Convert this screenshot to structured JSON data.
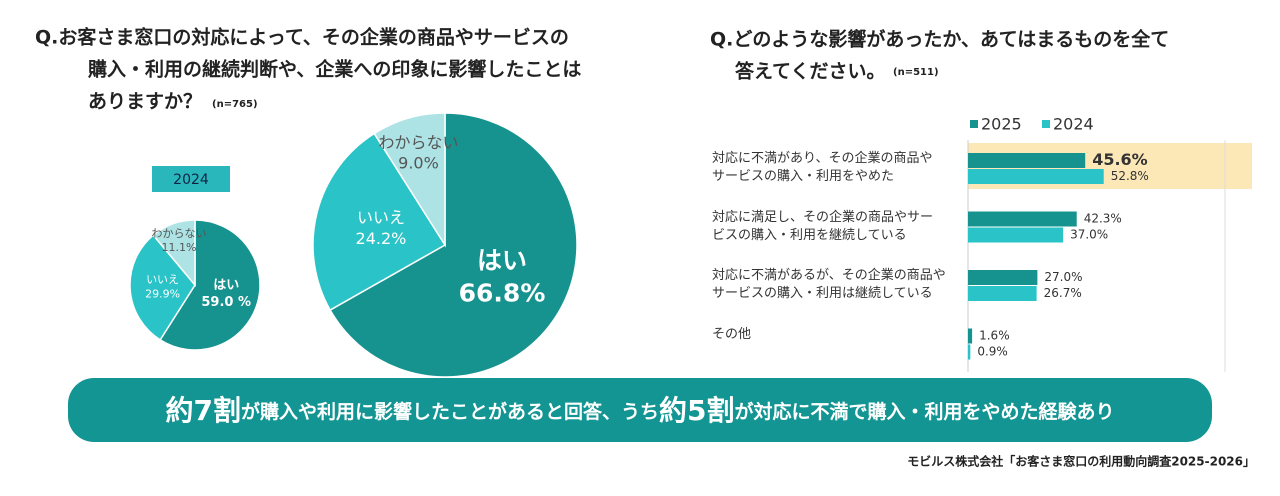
{
  "chart_data": [
    {
      "type": "pie",
      "title": "2024",
      "categories": [
        "はい",
        "いいえ",
        "わからない"
      ],
      "values": [
        59.0,
        29.9,
        11.1
      ],
      "value_labels": [
        "59.0 %",
        "29.9%",
        "11.1%"
      ],
      "colors": [
        "#17938f",
        "#2ac3c7",
        "#ade3e5"
      ]
    },
    {
      "type": "pie",
      "question": [
        "Q.お客さま窓口の対応によって、その企業の商品やサービスの",
        "購入・利用の継続判断や、企業への印象に影響したことは",
        "ありますか？"
      ],
      "sample": "(n=765)",
      "categories": [
        "はい",
        "いいえ",
        "わからない"
      ],
      "values": [
        66.8,
        24.2,
        9.0
      ],
      "value_labels": [
        "66.8%",
        "24.2%",
        "9.0%"
      ],
      "colors": [
        "#17938f",
        "#2ac3c7",
        "#ade3e5"
      ]
    },
    {
      "type": "hbar",
      "question": [
        "Q.どのような影響があったか、あてはまるものを全て",
        "答えてください。"
      ],
      "sample": "(n=511)",
      "categories": [
        "対応に不満があり、その企業の商品や\nサービスの購入・利用をやめた",
        "対応に満足し、その企業の商品やサー\nビスの購入・利用を継続している",
        "対応に不満があるが、その企業の商品や\nサービスの購入・利用は継続している",
        "その他"
      ],
      "series": [
        {
          "name": "2025",
          "color": "#17938f",
          "values": [
            45.6,
            42.3,
            27.0,
            1.6
          ],
          "value_labels": [
            "45.6%",
            "42.3%",
            "27.0%",
            "1.6%"
          ]
        },
        {
          "name": "2024",
          "color": "#2ac3c7",
          "values": [
            52.8,
            37.0,
            26.7,
            0.9
          ],
          "value_labels": [
            "52.8%",
            "37.0%",
            "26.7%",
            "0.9%"
          ]
        }
      ],
      "xlim": [
        0,
        100
      ],
      "highlight_category": 0,
      "highlight_color": "#fbe8b6"
    }
  ],
  "banner": [
    {
      "text": "約7割",
      "emphasis": true
    },
    {
      "text": "が購入や利用に影響したことがあると回答、うち",
      "emphasis": false
    },
    {
      "text": "約5割",
      "emphasis": true
    },
    {
      "text": "が対応に不満で購入・利用をやめた経験あり",
      "emphasis": false
    }
  ],
  "source": "モビルス株式会社「お客さま窓口の利用動向調査2025-2026」"
}
